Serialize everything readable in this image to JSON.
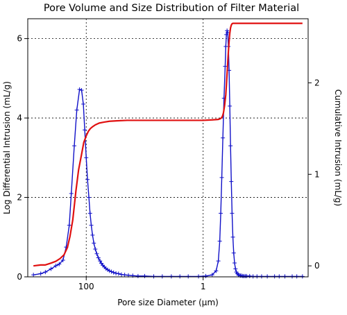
{
  "chart_data": {
    "type": "line",
    "title": "Pore Volume and Size Distribution of Filter Material",
    "xlabel": "Pore size Diameter (µm)",
    "ylabel": "Log Differential Intrusion (mL/g)",
    "y2label": "Cumulative Intrusion (mL/g)",
    "x_scale": "log",
    "x_reversed": true,
    "xlim": [
      1000,
      0.016
    ],
    "ylim": [
      0,
      6.5
    ],
    "y2lim": [
      -0.12,
      2.7
    ],
    "x_ticks": [
      {
        "value": 100,
        "label": "100"
      },
      {
        "value": 1,
        "label": "1"
      }
    ],
    "y_ticks": [
      {
        "value": 0,
        "label": "0"
      },
      {
        "value": 2,
        "label": "2"
      },
      {
        "value": 4,
        "label": "4"
      },
      {
        "value": 6,
        "label": "6"
      }
    ],
    "y2_ticks": [
      {
        "value": 0,
        "label": "0"
      },
      {
        "value": 1,
        "label": "1"
      },
      {
        "value": 2,
        "label": "2"
      }
    ],
    "grid": true,
    "series": [
      {
        "name": "",
        "axis": "left",
        "color": "#1010c8",
        "marker": "plus",
        "x": [
          800,
          600,
          500,
          400,
          330,
          290,
          250,
          220,
          195,
          180,
          160,
          145,
          130,
          120,
          112,
          106,
          100,
          95,
          90,
          86,
          82,
          78,
          74,
          70,
          66,
          62,
          58,
          55,
          52,
          49,
          46,
          43,
          40,
          37,
          34,
          31,
          28,
          25,
          22,
          19,
          16,
          13,
          10,
          7,
          5,
          3.5,
          2.5,
          1.8,
          1.2,
          0.9,
          0.7,
          0.6,
          0.55,
          0.52,
          0.5,
          0.48,
          0.46,
          0.44,
          0.42,
          0.41,
          0.4,
          0.39,
          0.38,
          0.37,
          0.36,
          0.35,
          0.34,
          0.33,
          0.32,
          0.31,
          0.3,
          0.29,
          0.28,
          0.27,
          0.26,
          0.25,
          0.24,
          0.23,
          0.22,
          0.21,
          0.2,
          0.19,
          0.18,
          0.16,
          0.14,
          0.12,
          0.1,
          0.08,
          0.06,
          0.05,
          0.04,
          0.03,
          0.025,
          0.02
        ],
        "y": [
          0.05,
          0.08,
          0.12,
          0.2,
          0.28,
          0.32,
          0.42,
          0.75,
          1.3,
          2.1,
          3.3,
          4.2,
          4.72,
          4.7,
          4.35,
          3.7,
          3.0,
          2.45,
          2.0,
          1.6,
          1.3,
          1.05,
          0.85,
          0.7,
          0.58,
          0.48,
          0.4,
          0.34,
          0.29,
          0.25,
          0.21,
          0.18,
          0.15,
          0.13,
          0.11,
          0.09,
          0.08,
          0.06,
          0.05,
          0.04,
          0.03,
          0.02,
          0.02,
          0.01,
          0.01,
          0.01,
          0.01,
          0.01,
          0.01,
          0.02,
          0.05,
          0.15,
          0.4,
          0.9,
          1.6,
          2.5,
          3.5,
          4.5,
          5.3,
          5.8,
          6.1,
          6.2,
          6.15,
          5.8,
          5.2,
          4.3,
          3.3,
          2.4,
          1.6,
          1.0,
          0.6,
          0.35,
          0.2,
          0.12,
          0.08,
          0.05,
          0.04,
          0.03,
          0.03,
          0.02,
          0.02,
          0.02,
          0.02,
          0.02,
          0.01,
          0.01,
          0.01,
          0.01,
          0.01,
          0.01,
          0.01,
          0.01,
          0.01,
          0.01
        ]
      },
      {
        "name": "",
        "axis": "right",
        "color": "#e01010",
        "marker": "none",
        "x": [
          800,
          600,
          500,
          400,
          330,
          280,
          240,
          210,
          190,
          170,
          150,
          135,
          120,
          110,
          100,
          92,
          85,
          78,
          70,
          60,
          50,
          40,
          30,
          20,
          10,
          5,
          2,
          1,
          0.7,
          0.55,
          0.5,
          0.47,
          0.45,
          0.43,
          0.41,
          0.4,
          0.39,
          0.38,
          0.37,
          0.36,
          0.35,
          0.34,
          0.33,
          0.32,
          0.31,
          0.3,
          0.28,
          0.25,
          0.2,
          0.15,
          0.1,
          0.05,
          0.02
        ],
        "y": [
          0.0,
          0.01,
          0.01,
          0.03,
          0.05,
          0.08,
          0.12,
          0.2,
          0.32,
          0.5,
          0.82,
          1.05,
          1.22,
          1.35,
          1.42,
          1.47,
          1.5,
          1.52,
          1.54,
          1.56,
          1.57,
          1.58,
          1.585,
          1.59,
          1.59,
          1.59,
          1.59,
          1.59,
          1.595,
          1.6,
          1.61,
          1.63,
          1.67,
          1.75,
          1.87,
          1.98,
          2.1,
          2.22,
          2.34,
          2.45,
          2.54,
          2.6,
          2.63,
          2.645,
          2.65,
          2.65,
          2.65,
          2.65,
          2.65,
          2.65,
          2.65,
          2.65,
          2.65
        ]
      }
    ]
  }
}
